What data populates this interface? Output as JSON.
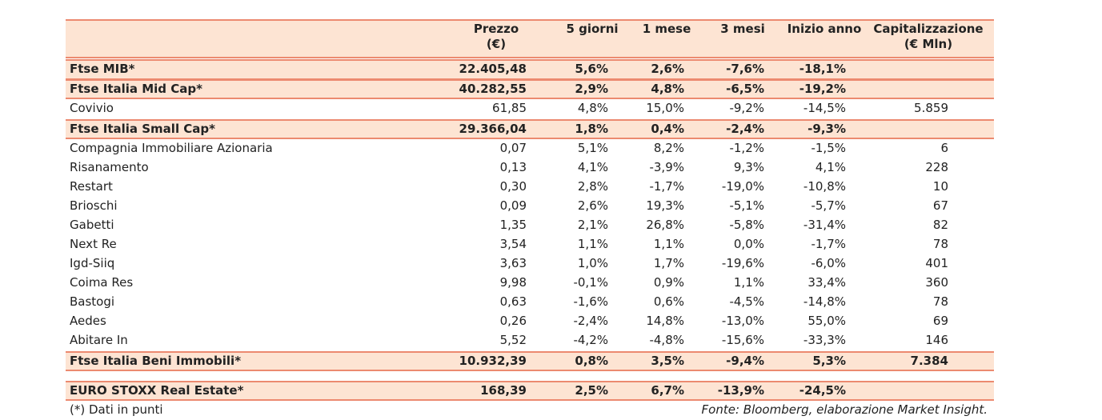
{
  "table": {
    "header": [
      "Prezzo\n(€)",
      "5 giorni",
      "1 mese",
      "3 mesi",
      "Inizio anno",
      "Capitalizzazione\n(€ Mln)"
    ],
    "rows": [
      {
        "highlight": true,
        "cells": [
          "Ftse MIB*",
          "22.405,48",
          "5,6%",
          "2,6%",
          "-7,6%",
          "-18,1%"
        ]
      },
      {
        "highlight": true,
        "cells": [
          "Ftse Italia Mid Cap*",
          "40.282,55",
          "2,9%",
          "4,8%",
          "-6,5%",
          "-19,2%"
        ]
      },
      {
        "highlight": false,
        "cells": [
          "Covivio",
          "61,85",
          "4,8%",
          "15,0%",
          "-9,2%",
          "-14,5%",
          "5.859"
        ]
      },
      {
        "highlight": true,
        "cells": [
          "Ftse Italia Small Cap*",
          "29.366,04",
          "1,8%",
          "0,4%",
          "-2,4%",
          "-9,3%"
        ]
      },
      {
        "highlight": false,
        "cells": [
          "Compagnia Immobiliare Azionaria",
          "0,07",
          "5,1%",
          "8,2%",
          "-1,2%",
          "-1,5%",
          "6"
        ]
      },
      {
        "highlight": false,
        "cells": [
          "Risanamento",
          "0,13",
          "4,1%",
          "-3,9%",
          "9,3%",
          "4,1%",
          "228"
        ]
      },
      {
        "highlight": false,
        "cells": [
          "Restart",
          "0,30",
          "2,8%",
          "-1,7%",
          "-19,0%",
          "-10,8%",
          "10"
        ]
      },
      {
        "highlight": false,
        "cells": [
          "Brioschi",
          "0,09",
          "2,6%",
          "19,3%",
          "-5,1%",
          "-5,7%",
          "67"
        ]
      },
      {
        "highlight": false,
        "cells": [
          "Gabetti",
          "1,35",
          "2,1%",
          "26,8%",
          "-5,8%",
          "-31,4%",
          "82"
        ]
      },
      {
        "highlight": false,
        "cells": [
          "Next Re",
          "3,54",
          "1,1%",
          "1,1%",
          "0,0%",
          "-1,7%",
          "78"
        ]
      },
      {
        "highlight": false,
        "cells": [
          "Igd-Siiq",
          "3,63",
          "1,0%",
          "1,7%",
          "-19,6%",
          "-6,0%",
          "401"
        ]
      },
      {
        "highlight": false,
        "cells": [
          "Coima Res",
          "9,98",
          "-0,1%",
          "0,9%",
          "1,1%",
          "33,4%",
          "360"
        ]
      },
      {
        "highlight": false,
        "cells": [
          "Bastogi",
          "0,63",
          "-1,6%",
          "0,6%",
          "-4,5%",
          "-14,8%",
          "78"
        ]
      },
      {
        "highlight": false,
        "cells": [
          "Aedes",
          "0,26",
          "-2,4%",
          "14,8%",
          "-13,0%",
          "55,0%",
          "69"
        ]
      },
      {
        "highlight": false,
        "cells": [
          "Abitare In",
          "5,52",
          "-4,2%",
          "-4,8%",
          "-15,6%",
          "-33,3%",
          "146"
        ]
      },
      {
        "highlight": true,
        "cells": [
          "Ftse Italia Beni Immobili*",
          "10.932,39",
          "0,8%",
          "3,5%",
          "-9,4%",
          "5,3%",
          "7.384"
        ]
      },
      {
        "highlight": true,
        "cells": [
          "EURO STOXX Real Estate*",
          "168,39",
          "2,5%",
          "6,7%",
          "-13,9%",
          "-24,5%"
        ]
      }
    ]
  },
  "footnote": "(*) Dati in punti",
  "source": "Fonte: Bloomberg, elaborazione Market Insight."
}
